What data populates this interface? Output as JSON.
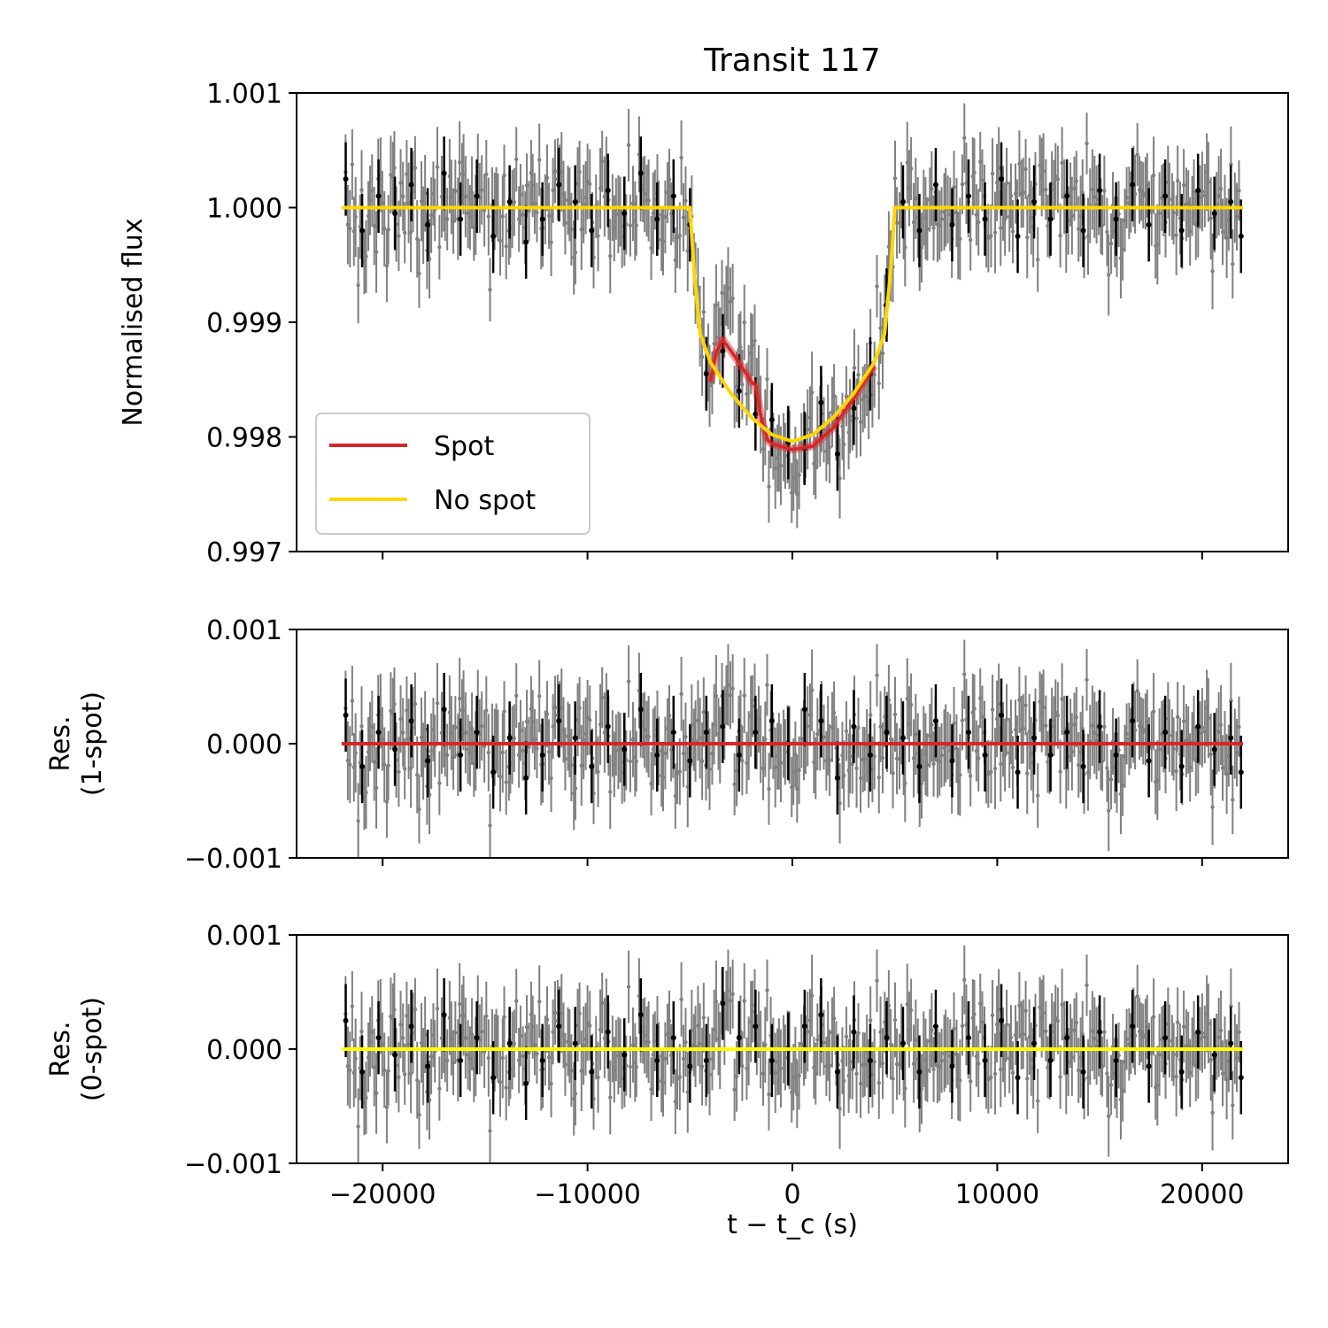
{
  "chart_data": [
    {
      "type": "scatter",
      "panel": "main",
      "title": "Transit 117",
      "xlabel": "t − t_c (s)",
      "ylabel": "Normalised flux",
      "xlim": [
        -24200,
        24200
      ],
      "ylim": [
        0.997,
        1.001
      ],
      "yticks": [
        "1.001",
        "1.000",
        "0.999",
        "0.998",
        "0.997"
      ],
      "legend": {
        "placement": "lower-left",
        "entries": [
          "Spot",
          "No spot"
        ]
      },
      "colors": {
        "spot": "#d62728",
        "nospot": "#ffd700",
        "data_gray": "#808080",
        "data_black": "#000000"
      },
      "series": [
        {
          "name": "No spot",
          "x": [
            -22000,
            -5000,
            -4800,
            -4500,
            -4000,
            -3000,
            -2000,
            -1000,
            0,
            1000,
            2000,
            3000,
            4000,
            4500,
            4800,
            5000,
            22000
          ],
          "values": [
            1.0,
            1.0,
            0.99945,
            0.9989,
            0.99865,
            0.99838,
            0.99817,
            0.99802,
            0.99796,
            0.99802,
            0.99817,
            0.99838,
            0.99865,
            0.9989,
            0.99945,
            1.0,
            1.0
          ]
        },
        {
          "name": "Spot",
          "x": [
            -4000,
            -3700,
            -3400,
            -3000,
            -2500,
            -2000,
            -1800,
            -1500,
            -1200,
            -1000,
            0,
            1000,
            2000,
            3000,
            4000
          ],
          "values": [
            0.99848,
            0.99875,
            0.99885,
            0.99875,
            0.99862,
            0.99848,
            0.99845,
            0.99815,
            0.99797,
            0.99794,
            0.99789,
            0.99792,
            0.99808,
            0.99834,
            0.99862
          ]
        }
      ],
      "binned_data": {
        "x": [
          -21800,
          -21000,
          -20200,
          -19400,
          -18600,
          -17800,
          -17000,
          -16200,
          -15400,
          -14600,
          -13800,
          -13000,
          -12200,
          -11400,
          -10600,
          -9800,
          -9000,
          -8200,
          -7400,
          -6600,
          -5800,
          -5000,
          -4200,
          -3400,
          -2600,
          -1800,
          -1000,
          -200,
          600,
          1400,
          2200,
          3000,
          3800,
          4600,
          5400,
          6200,
          7000,
          7800,
          8600,
          9400,
          10200,
          11000,
          11800,
          12600,
          13400,
          14200,
          15000,
          15800,
          16600,
          17400,
          18200,
          19000,
          19800,
          20600,
          21400,
          21900
        ],
        "values": [
          1.00025,
          0.9998,
          1.0001,
          0.99995,
          1.0002,
          0.99985,
          1.0003,
          0.9999,
          1.0001,
          0.99975,
          1.00005,
          0.9997,
          0.9999,
          1.0002,
          1.00005,
          0.9998,
          1.00015,
          0.99995,
          1.0003,
          0.9999,
          1.0001,
          0.99985,
          0.99855,
          0.99875,
          0.9984,
          0.9982,
          0.99815,
          0.99795,
          0.9979,
          0.9983,
          0.99785,
          0.99825,
          0.99855,
          0.99915,
          1.00005,
          0.9998,
          1.0002,
          0.99985,
          1.0001,
          0.9999,
          1.00025,
          0.99975,
          1.00005,
          0.9999,
          1.0001,
          0.9998,
          1.00015,
          0.9999,
          1.0002,
          0.99985,
          1.0001,
          0.9998,
          1.00015,
          0.99995,
          1.00005,
          0.99975
        ]
      }
    },
    {
      "type": "scatter",
      "panel": "residual-1spot",
      "xlabel": "",
      "ylabel": "Res.\n(1-spot)",
      "ylabel_lines": [
        "Res.",
        "(1-spot)"
      ],
      "xlim": [
        -24200,
        24200
      ],
      "ylim": [
        -0.001,
        0.001
      ],
      "yticks": [
        "0.001",
        "0.000",
        "−0.001"
      ],
      "series": [
        {
          "name": "model",
          "x": [
            -22000,
            22000
          ],
          "values": [
            0,
            0
          ]
        }
      ],
      "binned_data": {
        "x": [
          -21800,
          -21000,
          -20200,
          -19400,
          -18600,
          -17800,
          -17000,
          -16200,
          -15400,
          -14600,
          -13800,
          -13000,
          -12200,
          -11400,
          -10600,
          -9800,
          -9000,
          -8200,
          -7400,
          -6600,
          -5800,
          -5000,
          -4200,
          -3400,
          -2600,
          -1800,
          -1000,
          -200,
          600,
          1400,
          2200,
          3000,
          3800,
          4600,
          5400,
          6200,
          7000,
          7800,
          8600,
          9400,
          10200,
          11000,
          11800,
          12600,
          13400,
          14200,
          15000,
          15800,
          16600,
          17400,
          18200,
          19000,
          19800,
          20600,
          21400,
          21900
        ],
        "values": [
          0.00025,
          -0.0002,
          0.0001,
          -5e-05,
          0.0002,
          -0.00015,
          0.0003,
          -0.0001,
          0.0001,
          -0.00025,
          5e-05,
          -0.0003,
          -0.0001,
          0.0002,
          5e-05,
          -0.0002,
          0.00015,
          -5e-05,
          0.0003,
          -0.0001,
          0.0001,
          -0.00015,
          0.0001,
          0.00015,
          -0.0001,
          0.0001,
          0.0002,
          0.0,
          0.0003,
          0.0002,
          -0.0003,
          0.00015,
          -0.0001,
          0.0001,
          5e-05,
          -0.0002,
          0.0002,
          -0.00015,
          0.0001,
          -0.0001,
          0.00025,
          -0.00025,
          5e-05,
          -0.0001,
          0.0001,
          -0.0002,
          0.00015,
          -0.0001,
          0.0002,
          -0.00015,
          0.0001,
          -0.0002,
          0.00015,
          -5e-05,
          5e-05,
          -0.00025
        ]
      }
    },
    {
      "type": "scatter",
      "panel": "residual-0spot",
      "xlabel": "t − t_c (s)",
      "ylabel": "Res.\n(0-spot)",
      "ylabel_lines": [
        "Res.",
        "(0-spot)"
      ],
      "xlim": [
        -24200,
        24200
      ],
      "ylim": [
        -0.001,
        0.001
      ],
      "yticks": [
        "0.001",
        "0.000",
        "−0.001"
      ],
      "xticks": [
        "−20000",
        "−10000",
        "0",
        "10000",
        "20000"
      ],
      "series": [
        {
          "name": "model",
          "x": [
            -22000,
            22000
          ],
          "values": [
            0,
            0
          ]
        }
      ],
      "binned_data": {
        "x": [
          -21800,
          -21000,
          -20200,
          -19400,
          -18600,
          -17800,
          -17000,
          -16200,
          -15400,
          -14600,
          -13800,
          -13000,
          -12200,
          -11400,
          -10600,
          -9800,
          -9000,
          -8200,
          -7400,
          -6600,
          -5800,
          -5000,
          -4200,
          -3400,
          -2600,
          -1800,
          -1000,
          -200,
          600,
          1400,
          2200,
          3000,
          3800,
          4600,
          5400,
          6200,
          7000,
          7800,
          8600,
          9400,
          10200,
          11000,
          11800,
          12600,
          13400,
          14200,
          15000,
          15800,
          16600,
          17400,
          18200,
          19000,
          19800,
          20600,
          21400,
          21900
        ],
        "values": [
          0.00025,
          -0.0002,
          0.0001,
          -5e-05,
          0.0002,
          -0.00015,
          0.0003,
          -0.0001,
          0.0001,
          -0.00025,
          5e-05,
          -0.0003,
          -0.0001,
          0.0002,
          5e-05,
          -0.0002,
          0.00015,
          -5e-05,
          0.0003,
          -0.0001,
          0.0001,
          -0.00015,
          -0.0001,
          0.0004,
          0.0001,
          0.0002,
          -0.0001,
          0.0,
          0.0002,
          0.0003,
          -0.0002,
          0.00015,
          -0.0001,
          0.0001,
          5e-05,
          -0.0002,
          0.0002,
          -0.00015,
          0.0001,
          -0.0001,
          0.00025,
          -0.00025,
          5e-05,
          -0.0001,
          0.0001,
          -0.0002,
          0.00015,
          -0.0001,
          0.0002,
          -0.00015,
          0.0001,
          -0.0002,
          0.00015,
          -5e-05,
          5e-05,
          -0.00025
        ]
      }
    }
  ]
}
